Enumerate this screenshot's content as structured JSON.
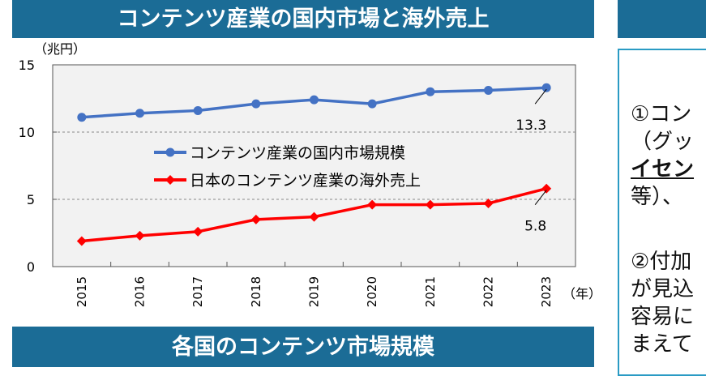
{
  "top_title": "コンテンツ産業の国内市場と海外売上",
  "bottom_title": "各国のコンテンツ市場規模",
  "right_panel": {
    "lines": [
      "①コン",
      "（グッ",
      "イセン",
      "等）、",
      "②付加",
      "が見込",
      "容易に",
      "まえて"
    ]
  },
  "colors": {
    "banner": "#1b6c96",
    "domestic": "#4472c4",
    "overseas": "#ff0000"
  },
  "chart_data": {
    "type": "line",
    "ylabel": "（兆円）",
    "xlabel": "（年）",
    "ylim": [
      0,
      15
    ],
    "yticks": [
      "0",
      "5",
      "10",
      "15"
    ],
    "categories": [
      "2015",
      "2016",
      "2017",
      "2018",
      "2019",
      "2020",
      "2021",
      "2022",
      "2023"
    ],
    "grid": "dashed horizontal at 5 and 10",
    "legend_position": "center",
    "series": [
      {
        "name": "コンテンツ産業の国内市場規模",
        "values": [
          11.1,
          11.4,
          11.6,
          12.1,
          12.4,
          12.1,
          13.0,
          13.1,
          13.3
        ],
        "marker": "circle",
        "color": "#4472c4",
        "end_label": "13.3"
      },
      {
        "name": "日本のコンテンツ産業の海外売上",
        "values": [
          1.9,
          2.3,
          2.6,
          3.5,
          3.7,
          4.6,
          4.6,
          4.7,
          5.8
        ],
        "marker": "diamond",
        "color": "#ff0000",
        "end_label": "5.8"
      }
    ]
  }
}
